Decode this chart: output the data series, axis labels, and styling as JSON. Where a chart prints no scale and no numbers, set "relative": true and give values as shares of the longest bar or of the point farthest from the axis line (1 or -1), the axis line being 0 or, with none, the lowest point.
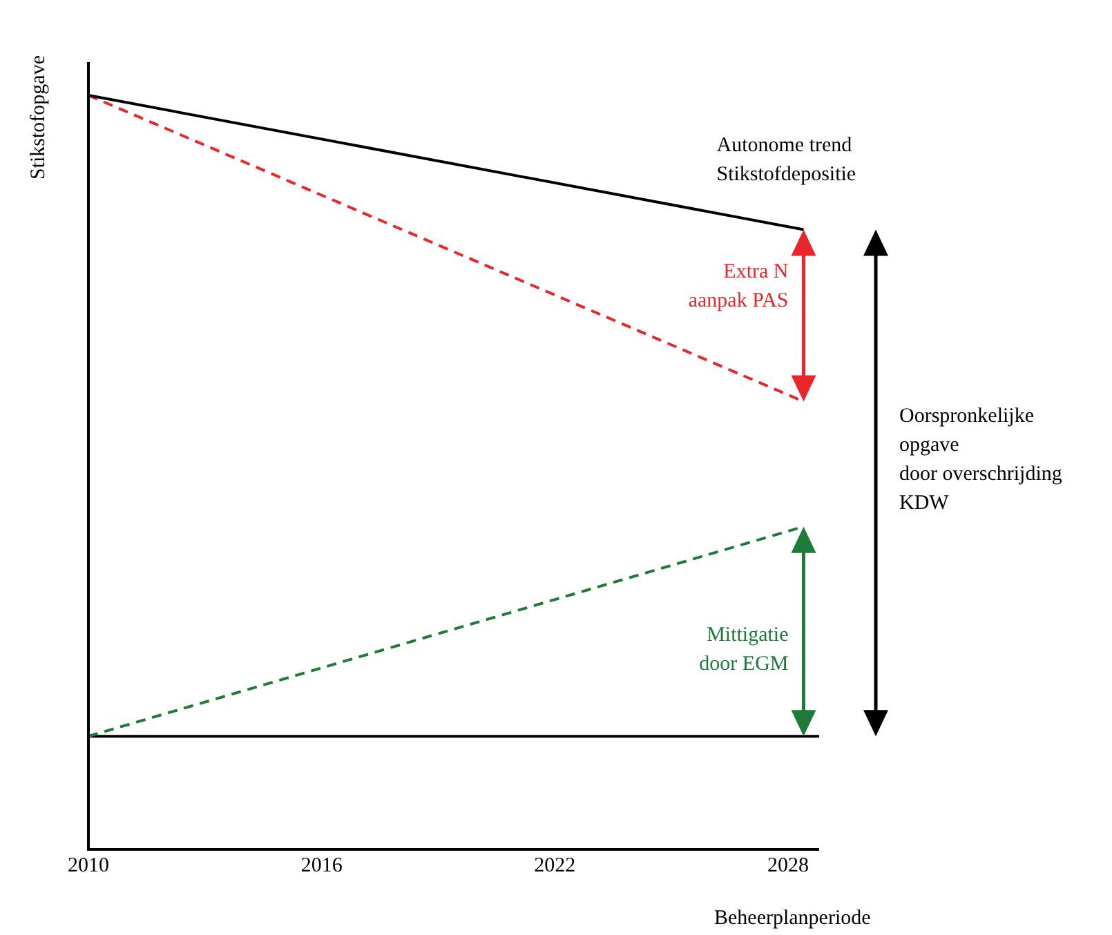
{
  "chart_data": {
    "type": "line",
    "relative": true,
    "ylabel": "Stikstofopgave",
    "xlabel": "Beheerplanperiode",
    "xlim": [
      2010,
      2028.8
    ],
    "xticks": [
      2010,
      2016,
      2022,
      2028
    ],
    "tick_labels": "x",
    "grid": false,
    "legend": false,
    "marker": "none",
    "series": [
      {
        "color": "#000000",
        "line_style": "solid",
        "x": [
          2010,
          2028.4
        ],
        "values": [
          1,
          0.822
        ]
      },
      {
        "color": "#e8262b",
        "line_style": "dashed",
        "x": [
          2010,
          2028.4
        ],
        "values": [
          1,
          0.594
        ]
      },
      {
        "color": "#1e7b3a",
        "line_style": "dashed",
        "x": [
          2010,
          2028.4
        ],
        "values": [
          0.15,
          0.428
        ]
      },
      {
        "color": "#000000",
        "line_style": "solid",
        "x": [
          2010,
          2028.8
        ],
        "values": [
          0.15,
          0.15
        ]
      }
    ],
    "annotations": [
      "Autonome trend\nStikstofdepositie",
      "Extra N\naanpak PAS",
      "Mittigatie\ndoor EGM",
      "Oorspronkelijke\nopgave\ndoor overschrijding\nKDW"
    ]
  }
}
